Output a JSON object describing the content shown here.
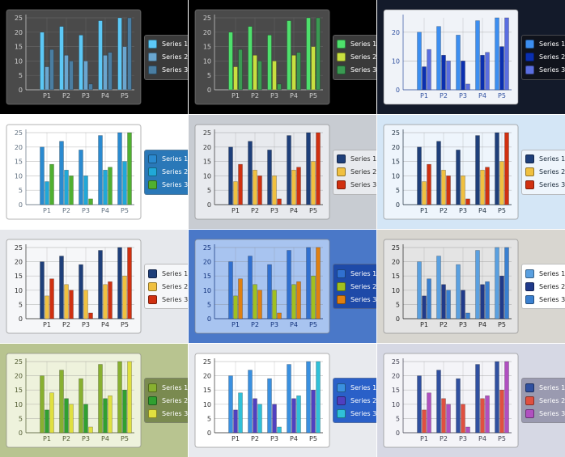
{
  "chart_data": [
    {
      "type": "bar",
      "theme": "dark-blue",
      "background": "#000000",
      "plot_bg": "#4a4a4a",
      "axis_text": "#d0d0d0",
      "legend_bg": "#3a3a3a",
      "legend_text": "#ffffff",
      "colors": [
        "#5cc8f6",
        "#6aa6cf",
        "#4a7ea2"
      ]
    },
    {
      "type": "bar",
      "theme": "dark-green",
      "background": "#000000",
      "plot_bg": "#4a4a4a",
      "axis_text": "#d0d0d0",
      "legend_bg": "#3a3a3a",
      "legend_text": "#ffffff",
      "colors": [
        "#4ee06c",
        "#c8e040",
        "#3a9a52"
      ]
    },
    {
      "type": "bar",
      "theme": "navy",
      "background": "#131a2a",
      "plot_bg": "#f0f3f8",
      "axis_text": "#3050a0",
      "legend_bg": "#10131c",
      "legend_text": "#ffffff",
      "colors": [
        "#3c8ef0",
        "#0a2fb0",
        "#5a6ee0"
      ],
      "ticks": [
        0,
        10,
        20
      ]
    },
    {
      "type": "bar",
      "theme": "aqua",
      "background": "#ffffff",
      "plot_bg": "#ffffff",
      "axis_text": "#607080",
      "legend_bg": "#2a78b8",
      "legend_text": "#ffffff",
      "colors": [
        "#2a8ad0",
        "#20a8d8",
        "#50b030"
      ]
    },
    {
      "type": "bar",
      "theme": "gray-office",
      "background": "#c8ccd2",
      "plot_bg": "#e8eaee",
      "axis_text": "#303030",
      "legend_bg": "#e8eaee",
      "legend_text": "#303030",
      "colors": [
        "#1e3f7a",
        "#f0c040",
        "#d03010"
      ]
    },
    {
      "type": "bar",
      "theme": "lightblue-office",
      "background": "#d4e6f6",
      "plot_bg": "#eef5fc",
      "axis_text": "#203040",
      "legend_bg": "#eef5fc",
      "legend_text": "#203040",
      "colors": [
        "#1e3f7a",
        "#f0c040",
        "#d03010"
      ]
    },
    {
      "type": "bar",
      "theme": "silver-office",
      "background": "#e6e8ec",
      "plot_bg": "#f6f7f9",
      "axis_text": "#303030",
      "legend_bg": "#f6f7f9",
      "legend_text": "#303030",
      "colors": [
        "#1e3f7a",
        "#f0c040",
        "#d03010"
      ]
    },
    {
      "type": "bar",
      "theme": "blue",
      "background": "#4a78c8",
      "plot_bg": "#a8c4f0",
      "axis_text": "#10307a",
      "legend_bg": "#1e4aa8",
      "legend_text": "#ffffff",
      "colors": [
        "#3070d0",
        "#a0c020",
        "#e08010"
      ]
    },
    {
      "type": "bar",
      "theme": "frame-gray",
      "background": "#d8d6d0",
      "plot_bg": "#e4e4e4",
      "axis_text": "#202020",
      "legend_bg": "#ffffff",
      "legend_text": "#202020",
      "colors": [
        "#5aa0e0",
        "#203a8a",
        "#3a80d0"
      ]
    },
    {
      "type": "bar",
      "theme": "olive",
      "background": "#b8c490",
      "plot_bg": "#eef2dc",
      "axis_text": "#505a30",
      "legend_bg": "#7a8a50",
      "legend_text": "#ffffff",
      "colors": [
        "#88b030",
        "#30a030",
        "#e0e040"
      ]
    },
    {
      "type": "bar",
      "theme": "white-blue",
      "background": "#e8eaee",
      "plot_bg": "#ffffff",
      "axis_text": "#303030",
      "legend_bg": "#2a60c8",
      "legend_text": "#ffffff",
      "colors": [
        "#3a90e0",
        "#5040c0",
        "#30c0d8"
      ]
    },
    {
      "type": "bar",
      "theme": "lavender",
      "background": "#d6d8e4",
      "plot_bg": "#f4f4f8",
      "axis_text": "#404050",
      "legend_bg": "#9a9ab0",
      "legend_text": "#ffffff",
      "colors": [
        "#3050a0",
        "#e05040",
        "#b050c0"
      ]
    }
  ],
  "shared": {
    "categories": [
      "P1",
      "P2",
      "P3",
      "P4",
      "P5"
    ],
    "series": [
      {
        "name": "Series 1",
        "values": [
          20,
          22,
          19,
          24,
          25
        ]
      },
      {
        "name": "Series 2",
        "values": [
          8,
          12,
          10,
          12,
          15
        ]
      },
      {
        "name": "Series 3",
        "values": [
          14,
          10,
          2,
          13,
          25
        ]
      }
    ],
    "ylim": [
      0,
      25
    ],
    "ticks": [
      0,
      5,
      10,
      15,
      20,
      25
    ],
    "grid": true,
    "legend": "right"
  }
}
